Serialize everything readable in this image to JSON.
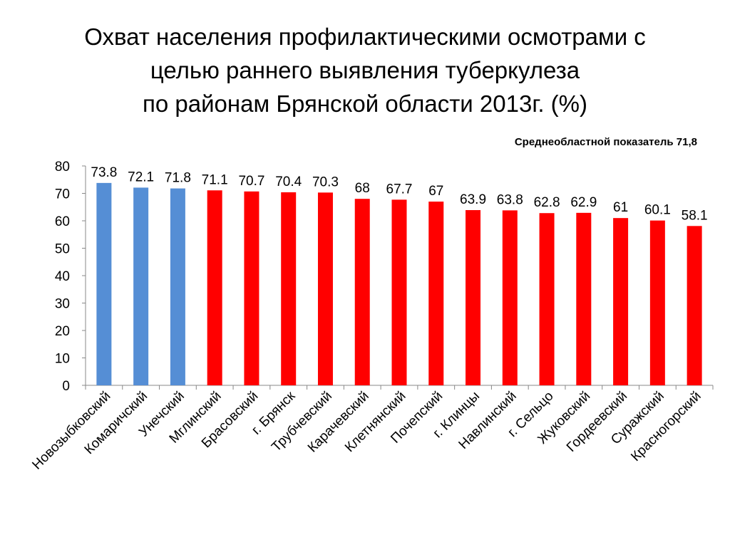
{
  "title": {
    "line1": "Охват населения профилактическими осмотрами с",
    "line2": "целью раннего выявления туберкулеза",
    "line3": "по районам Брянской области 2013г. (%)"
  },
  "note": "Среднеобластной показатель 71,8",
  "colors": {
    "above_avg": "#558ED5",
    "below_avg": "#FF0000"
  },
  "chart_data": {
    "type": "bar",
    "categories": [
      "Новозыбковский",
      "Комаричский",
      "Унечский",
      "Мглинский",
      "Брасовский",
      "г. Брянск",
      "Трубчевский",
      "Карачевский",
      "Клетнянский",
      "Почепский",
      "г. Клинцы",
      "Навлинский",
      "г. Сельцо",
      "Жуковский",
      "Гордеевский",
      "Суражский",
      "Красногорский"
    ],
    "values": [
      73.8,
      72.1,
      71.8,
      71.1,
      70.7,
      70.4,
      70.3,
      68,
      67.7,
      67,
      63.9,
      63.8,
      62.8,
      62.9,
      61,
      60.1,
      58.1
    ],
    "value_labels": [
      "73.8",
      "72.1",
      "71.8",
      "71.1",
      "70.7",
      "70.4",
      "70.3",
      "68",
      "67.7",
      "67",
      "63.9",
      "63.8",
      "62.8",
      "62.9",
      "61",
      "60.1",
      "58.1"
    ],
    "bar_colors": [
      "#558ED5",
      "#558ED5",
      "#558ED5",
      "#FF0000",
      "#FF0000",
      "#FF0000",
      "#FF0000",
      "#FF0000",
      "#FF0000",
      "#FF0000",
      "#FF0000",
      "#FF0000",
      "#FF0000",
      "#FF0000",
      "#FF0000",
      "#FF0000",
      "#FF0000"
    ],
    "yticks": [
      "0",
      "10",
      "20",
      "30",
      "40",
      "50",
      "60",
      "70",
      "80"
    ],
    "ylim": [
      0,
      80
    ],
    "grid": false,
    "legend": "none"
  }
}
